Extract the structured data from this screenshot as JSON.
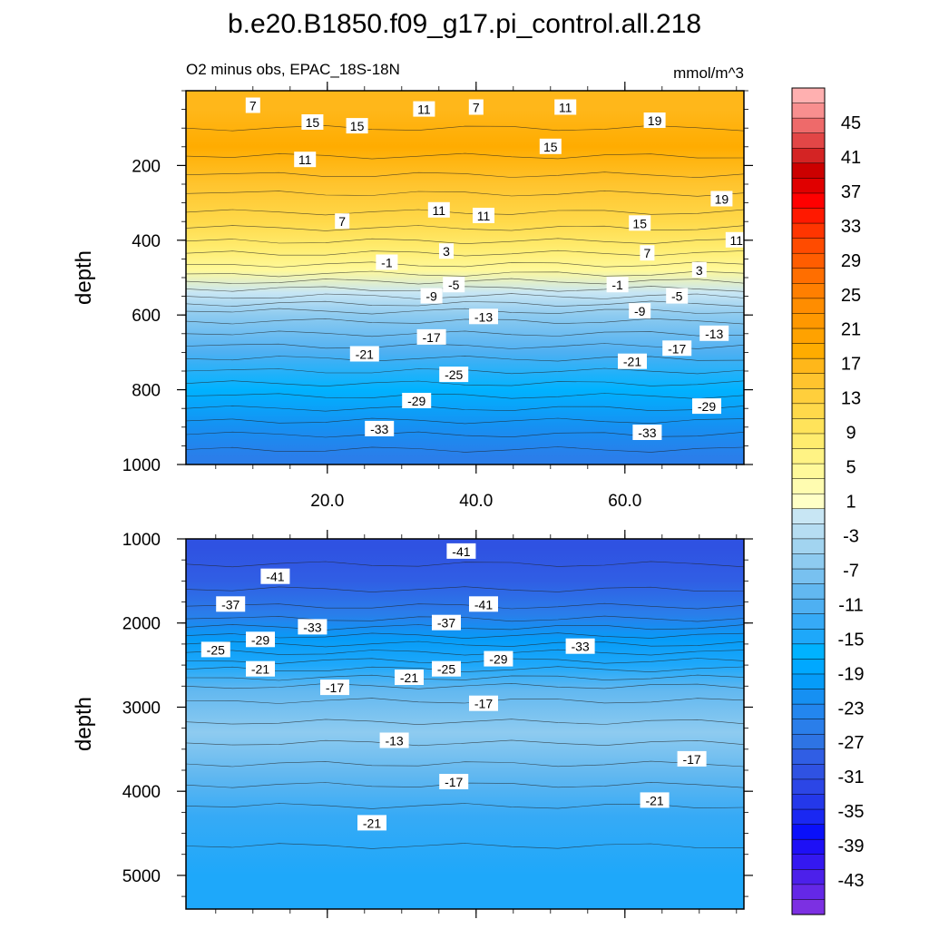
{
  "chart_data": {
    "type": "contour",
    "title": "b.e20.B1850.f09_g17.pi_control.all.218",
    "subtitle_left": "O2 minus obs, EPAC_18S-18N",
    "units": "mmol/m^3",
    "xlabel": "",
    "ylabel": "depth",
    "xlim": [
      1,
      76
    ],
    "x_ticks": [
      "20.0",
      "40.0",
      "60.0"
    ],
    "x_tick_values": [
      20,
      40,
      60
    ],
    "upper_panel": {
      "ylim": [
        0,
        1000
      ],
      "y_ticks": [
        "200",
        "400",
        "600",
        "800",
        "1000"
      ],
      "y_tick_values": [
        200,
        400,
        600,
        800,
        1000
      ],
      "depth_profile": [
        {
          "depth": 50,
          "value": 13
        },
        {
          "depth": 150,
          "value": 15
        },
        {
          "depth": 250,
          "value": 11
        },
        {
          "depth": 350,
          "value": 7
        },
        {
          "depth": 420,
          "value": 3
        },
        {
          "depth": 480,
          "value": -1
        },
        {
          "depth": 540,
          "value": -7
        },
        {
          "depth": 600,
          "value": -13
        },
        {
          "depth": 700,
          "value": -19
        },
        {
          "depth": 800,
          "value": -25
        },
        {
          "depth": 900,
          "value": -31
        },
        {
          "depth": 980,
          "value": -35
        }
      ],
      "contour_labels": [
        {
          "x": 10,
          "depth": 40,
          "text": "7"
        },
        {
          "x": 18,
          "depth": 85,
          "text": "15"
        },
        {
          "x": 24,
          "depth": 95,
          "text": "15"
        },
        {
          "x": 33,
          "depth": 50,
          "text": "11"
        },
        {
          "x": 40,
          "depth": 45,
          "text": "7"
        },
        {
          "x": 52,
          "depth": 45,
          "text": "11"
        },
        {
          "x": 64,
          "depth": 80,
          "text": "19"
        },
        {
          "x": 50,
          "depth": 150,
          "text": "15"
        },
        {
          "x": 17,
          "depth": 185,
          "text": "11"
        },
        {
          "x": 73,
          "depth": 290,
          "text": "19"
        },
        {
          "x": 35,
          "depth": 320,
          "text": "11"
        },
        {
          "x": 41,
          "depth": 335,
          "text": "11"
        },
        {
          "x": 22,
          "depth": 350,
          "text": "7"
        },
        {
          "x": 62,
          "depth": 355,
          "text": "15"
        },
        {
          "x": 75,
          "depth": 400,
          "text": "11"
        },
        {
          "x": 36,
          "depth": 430,
          "text": "3"
        },
        {
          "x": 63,
          "depth": 435,
          "text": "7"
        },
        {
          "x": 28,
          "depth": 460,
          "text": "-1"
        },
        {
          "x": 70,
          "depth": 480,
          "text": "3"
        },
        {
          "x": 37,
          "depth": 520,
          "text": "-5"
        },
        {
          "x": 59,
          "depth": 520,
          "text": "-1"
        },
        {
          "x": 34,
          "depth": 550,
          "text": "-9"
        },
        {
          "x": 67,
          "depth": 550,
          "text": "-5"
        },
        {
          "x": 41,
          "depth": 605,
          "text": "-13"
        },
        {
          "x": 62,
          "depth": 590,
          "text": "-9"
        },
        {
          "x": 34,
          "depth": 660,
          "text": "-17"
        },
        {
          "x": 72,
          "depth": 650,
          "text": "-13"
        },
        {
          "x": 67,
          "depth": 690,
          "text": "-17"
        },
        {
          "x": 25,
          "depth": 705,
          "text": "-21"
        },
        {
          "x": 61,
          "depth": 725,
          "text": "-21"
        },
        {
          "x": 37,
          "depth": 760,
          "text": "-25"
        },
        {
          "x": 32,
          "depth": 830,
          "text": "-29"
        },
        {
          "x": 71,
          "depth": 845,
          "text": "-29"
        },
        {
          "x": 27,
          "depth": 905,
          "text": "-33"
        },
        {
          "x": 63,
          "depth": 915,
          "text": "-33"
        }
      ]
    },
    "lower_panel": {
      "ylim": [
        1000,
        5400
      ],
      "y_ticks": [
        "1000",
        "2000",
        "3000",
        "4000",
        "5000"
      ],
      "y_tick_values": [
        1000,
        2000,
        3000,
        4000,
        5000
      ],
      "depth_profile": [
        {
          "depth": 1100,
          "value": -41
        },
        {
          "depth": 1500,
          "value": -39
        },
        {
          "depth": 1900,
          "value": -35
        },
        {
          "depth": 2200,
          "value": -29
        },
        {
          "depth": 2500,
          "value": -23
        },
        {
          "depth": 2800,
          "value": -17
        },
        {
          "depth": 3300,
          "value": -13
        },
        {
          "depth": 3800,
          "value": -17
        },
        {
          "depth": 4300,
          "value": -21
        },
        {
          "depth": 5000,
          "value": -23
        }
      ],
      "contour_labels": [
        {
          "x": 38,
          "depth": 1150,
          "text": "-41"
        },
        {
          "x": 13,
          "depth": 1450,
          "text": "-41"
        },
        {
          "x": 7,
          "depth": 1780,
          "text": "-37"
        },
        {
          "x": 41,
          "depth": 1780,
          "text": "-41"
        },
        {
          "x": 36,
          "depth": 2000,
          "text": "-37"
        },
        {
          "x": 18,
          "depth": 2050,
          "text": "-33"
        },
        {
          "x": 11,
          "depth": 2200,
          "text": "-29"
        },
        {
          "x": 54,
          "depth": 2280,
          "text": "-33"
        },
        {
          "x": 5,
          "depth": 2320,
          "text": "-25"
        },
        {
          "x": 43,
          "depth": 2430,
          "text": "-29"
        },
        {
          "x": 11,
          "depth": 2550,
          "text": "-21"
        },
        {
          "x": 36,
          "depth": 2550,
          "text": "-25"
        },
        {
          "x": 31,
          "depth": 2650,
          "text": "-21"
        },
        {
          "x": 21,
          "depth": 2770,
          "text": "-17"
        },
        {
          "x": 41,
          "depth": 2960,
          "text": "-17"
        },
        {
          "x": 29,
          "depth": 3400,
          "text": "-13"
        },
        {
          "x": 69,
          "depth": 3620,
          "text": "-17"
        },
        {
          "x": 37,
          "depth": 3890,
          "text": "-17"
        },
        {
          "x": 64,
          "depth": 4110,
          "text": "-21"
        },
        {
          "x": 26,
          "depth": 4380,
          "text": "-21"
        }
      ]
    },
    "colorbar": {
      "levels": [
        "45",
        "41",
        "37",
        "33",
        "29",
        "25",
        "21",
        "17",
        "13",
        "9",
        "5",
        "1",
        "-3",
        "-7",
        "-11",
        "-15",
        "-19",
        "-23",
        "-27",
        "-31",
        "-35",
        "-39",
        "-43"
      ],
      "level_values": [
        45,
        41,
        37,
        33,
        29,
        25,
        21,
        17,
        13,
        9,
        5,
        1,
        -3,
        -7,
        -11,
        -15,
        -19,
        -23,
        -27,
        -31,
        -35,
        -39,
        -43
      ],
      "range": [
        -47,
        49
      ],
      "bin_width": 2,
      "colors": [
        "#ffb0b0",
        "#f88f8f",
        "#ee6a6a",
        "#e24646",
        "#d42424",
        "#cc0000",
        "#e00000",
        "#ff0000",
        "#ff1900",
        "#ff3500",
        "#ff4b00",
        "#ff5d00",
        "#ff6e00",
        "#ff7f00",
        "#ff8d00",
        "#ff9800",
        "#ffa200",
        "#ffac00",
        "#ffb71a",
        "#ffc42e",
        "#ffcf3c",
        "#ffd94a",
        "#ffe35a",
        "#ffec6e",
        "#fff384",
        "#fff99a",
        "#fffcb0",
        "#ffffc6",
        "#c8e6f4",
        "#b6ddf2",
        "#a2d4f0",
        "#8ecbf0",
        "#78c1f0",
        "#62b8f0",
        "#4eb0f2",
        "#36aaf6",
        "#1ea8fa",
        "#00b2ff",
        "#00a8ff",
        "#069cf8",
        "#1690f2",
        "#2386ee",
        "#2a7eea",
        "#2e74e4",
        "#305ee4",
        "#2f52e2",
        "#2c46e6",
        "#2438ea",
        "#1a28f2",
        "#0a10fa",
        "#1e10f6",
        "#3418f0",
        "#4c20ea",
        "#6428e6",
        "#7c30e2"
      ]
    }
  }
}
